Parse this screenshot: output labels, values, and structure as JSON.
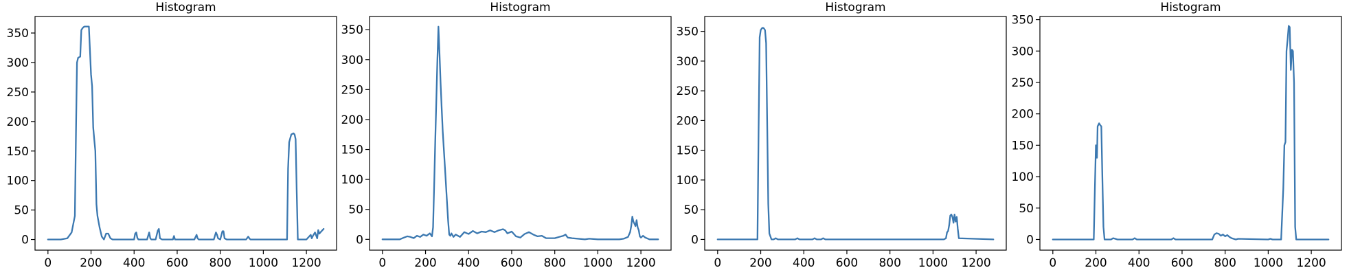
{
  "style": {
    "line_color": "#3b78b0",
    "background": "#ffffff"
  },
  "chart_data": [
    {
      "type": "line",
      "title": "Histogram",
      "xlabel": "",
      "ylabel": "",
      "xlim": [
        -60,
        1340
      ],
      "ylim": [
        -18,
        378
      ],
      "xticks": [
        0,
        200,
        400,
        600,
        800,
        1000,
        1200
      ],
      "yticks": [
        0,
        50,
        100,
        150,
        200,
        250,
        300,
        350
      ],
      "grid": false,
      "legend": "none",
      "series": [
        {
          "x": [
            0,
            60,
            90,
            110,
            125,
            130,
            135,
            140,
            150,
            155,
            160,
            165,
            170,
            190,
            195,
            200,
            205,
            210,
            215,
            220,
            225,
            230,
            240,
            250,
            260,
            270,
            280,
            290,
            300,
            310,
            400,
            405,
            410,
            415,
            420,
            460,
            470,
            475,
            480,
            500,
            510,
            515,
            520,
            530,
            580,
            585,
            590,
            680,
            690,
            695,
            700,
            770,
            780,
            785,
            790,
            800,
            810,
            815,
            820,
            830,
            920,
            930,
            935,
            940,
            1110,
            1115,
            1120,
            1125,
            1130,
            1140,
            1145,
            1150,
            1155,
            1160,
            1170,
            1200,
            1210,
            1220,
            1225,
            1230,
            1240,
            1250,
            1255,
            1260,
            1270,
            1275,
            1280
          ],
          "y": [
            0,
            0,
            2,
            12,
            40,
            180,
            300,
            308,
            310,
            355,
            358,
            360,
            361,
            361,
            320,
            280,
            260,
            190,
            170,
            150,
            60,
            40,
            20,
            5,
            0,
            10,
            10,
            2,
            0,
            0,
            0,
            10,
            12,
            3,
            0,
            0,
            12,
            2,
            0,
            0,
            15,
            18,
            2,
            0,
            0,
            6,
            0,
            0,
            8,
            2,
            0,
            0,
            12,
            8,
            2,
            0,
            14,
            14,
            2,
            0,
            0,
            5,
            2,
            0,
            0,
            120,
            165,
            172,
            178,
            180,
            178,
            170,
            80,
            0,
            0,
            0,
            4,
            8,
            2,
            6,
            12,
            2,
            16,
            10,
            14,
            16,
            18
          ]
        }
      ]
    },
    {
      "type": "line",
      "title": "Histogram",
      "xlabel": "",
      "ylabel": "",
      "xlim": [
        -60,
        1340
      ],
      "ylim": [
        -18,
        372
      ],
      "xticks": [
        0,
        200,
        400,
        600,
        800,
        1000,
        1200
      ],
      "yticks": [
        0,
        50,
        100,
        150,
        200,
        250,
        300,
        350
      ],
      "grid": false,
      "legend": "none",
      "series": [
        {
          "x": [
            0,
            80,
            100,
            115,
            130,
            145,
            160,
            175,
            190,
            205,
            220,
            230,
            235,
            240,
            245,
            250,
            255,
            260,
            265,
            270,
            275,
            280,
            290,
            300,
            305,
            310,
            315,
            320,
            330,
            340,
            360,
            380,
            400,
            420,
            440,
            460,
            480,
            500,
            520,
            540,
            560,
            570,
            580,
            600,
            620,
            640,
            660,
            680,
            700,
            720,
            740,
            760,
            800,
            820,
            840,
            850,
            860,
            880,
            940,
            960,
            1000,
            1100,
            1120,
            1140,
            1150,
            1155,
            1160,
            1165,
            1170,
            1175,
            1180,
            1185,
            1190,
            1195,
            1200,
            1210,
            1220,
            1240,
            1260,
            1280
          ],
          "y": [
            0,
            0,
            3,
            5,
            4,
            2,
            6,
            4,
            8,
            6,
            10,
            5,
            20,
            90,
            160,
            230,
            300,
            355,
            310,
            260,
            220,
            180,
            120,
            60,
            30,
            8,
            6,
            10,
            4,
            8,
            4,
            12,
            9,
            14,
            10,
            13,
            12,
            15,
            12,
            15,
            17,
            15,
            10,
            13,
            5,
            3,
            9,
            12,
            8,
            5,
            6,
            2,
            2,
            4,
            6,
            8,
            3,
            2,
            0,
            1,
            0,
            0,
            1,
            4,
            12,
            22,
            38,
            30,
            26,
            22,
            32,
            20,
            15,
            5,
            3,
            6,
            3,
            0,
            0,
            0
          ]
        }
      ]
    },
    {
      "type": "line",
      "title": "Histogram",
      "xlabel": "",
      "ylabel": "",
      "xlim": [
        -60,
        1340
      ],
      "ylim": [
        -18,
        375
      ],
      "xticks": [
        0,
        200,
        400,
        600,
        800,
        1000,
        1200
      ],
      "yticks": [
        0,
        50,
        100,
        150,
        200,
        250,
        300,
        350
      ],
      "grid": false,
      "legend": "none",
      "series": [
        {
          "x": [
            0,
            185,
            190,
            195,
            200,
            205,
            210,
            215,
            220,
            225,
            230,
            235,
            240,
            250,
            260,
            270,
            280,
            300,
            360,
            370,
            380,
            440,
            450,
            460,
            480,
            490,
            500,
            1050,
            1060,
            1065,
            1070,
            1075,
            1080,
            1085,
            1090,
            1095,
            1100,
            1105,
            1110,
            1115,
            1120,
            1280
          ],
          "y": [
            0,
            0,
            180,
            340,
            352,
            355,
            356,
            355,
            352,
            330,
            200,
            60,
            10,
            0,
            0,
            2,
            0,
            0,
            0,
            2,
            0,
            0,
            2,
            0,
            0,
            2,
            0,
            0,
            2,
            12,
            14,
            24,
            40,
            42,
            38,
            28,
            42,
            30,
            38,
            18,
            2,
            0
          ]
        }
      ]
    },
    {
      "type": "line",
      "title": "Histogram",
      "xlabel": "",
      "ylabel": "",
      "xlim": [
        -60,
        1340
      ],
      "ylim": [
        -17,
        355
      ],
      "xticks": [
        0,
        200,
        400,
        600,
        800,
        1000,
        1200
      ],
      "yticks": [
        0,
        50,
        100,
        150,
        200,
        250,
        300,
        350
      ],
      "grid": false,
      "legend": "none",
      "series": [
        {
          "x": [
            0,
            190,
            195,
            200,
            205,
            208,
            212,
            215,
            220,
            225,
            230,
            235,
            240,
            250,
            270,
            280,
            290,
            300,
            370,
            380,
            390,
            550,
            560,
            570,
            740,
            750,
            760,
            770,
            780,
            790,
            800,
            810,
            820,
            830,
            850,
            860,
            1000,
            1010,
            1020,
            1060,
            1070,
            1075,
            1080,
            1085,
            1090,
            1095,
            1100,
            1105,
            1110,
            1115,
            1120,
            1125,
            1130,
            1135,
            1280
          ],
          "y": [
            0,
            0,
            80,
            150,
            130,
            180,
            183,
            185,
            182,
            180,
            100,
            20,
            0,
            0,
            0,
            2,
            1,
            0,
            0,
            2,
            0,
            0,
            2,
            0,
            0,
            8,
            10,
            9,
            6,
            8,
            5,
            7,
            4,
            2,
            0,
            1,
            0,
            1,
            0,
            0,
            80,
            150,
            155,
            300,
            318,
            340,
            338,
            270,
            302,
            300,
            250,
            20,
            0,
            0,
            0
          ]
        }
      ]
    }
  ]
}
